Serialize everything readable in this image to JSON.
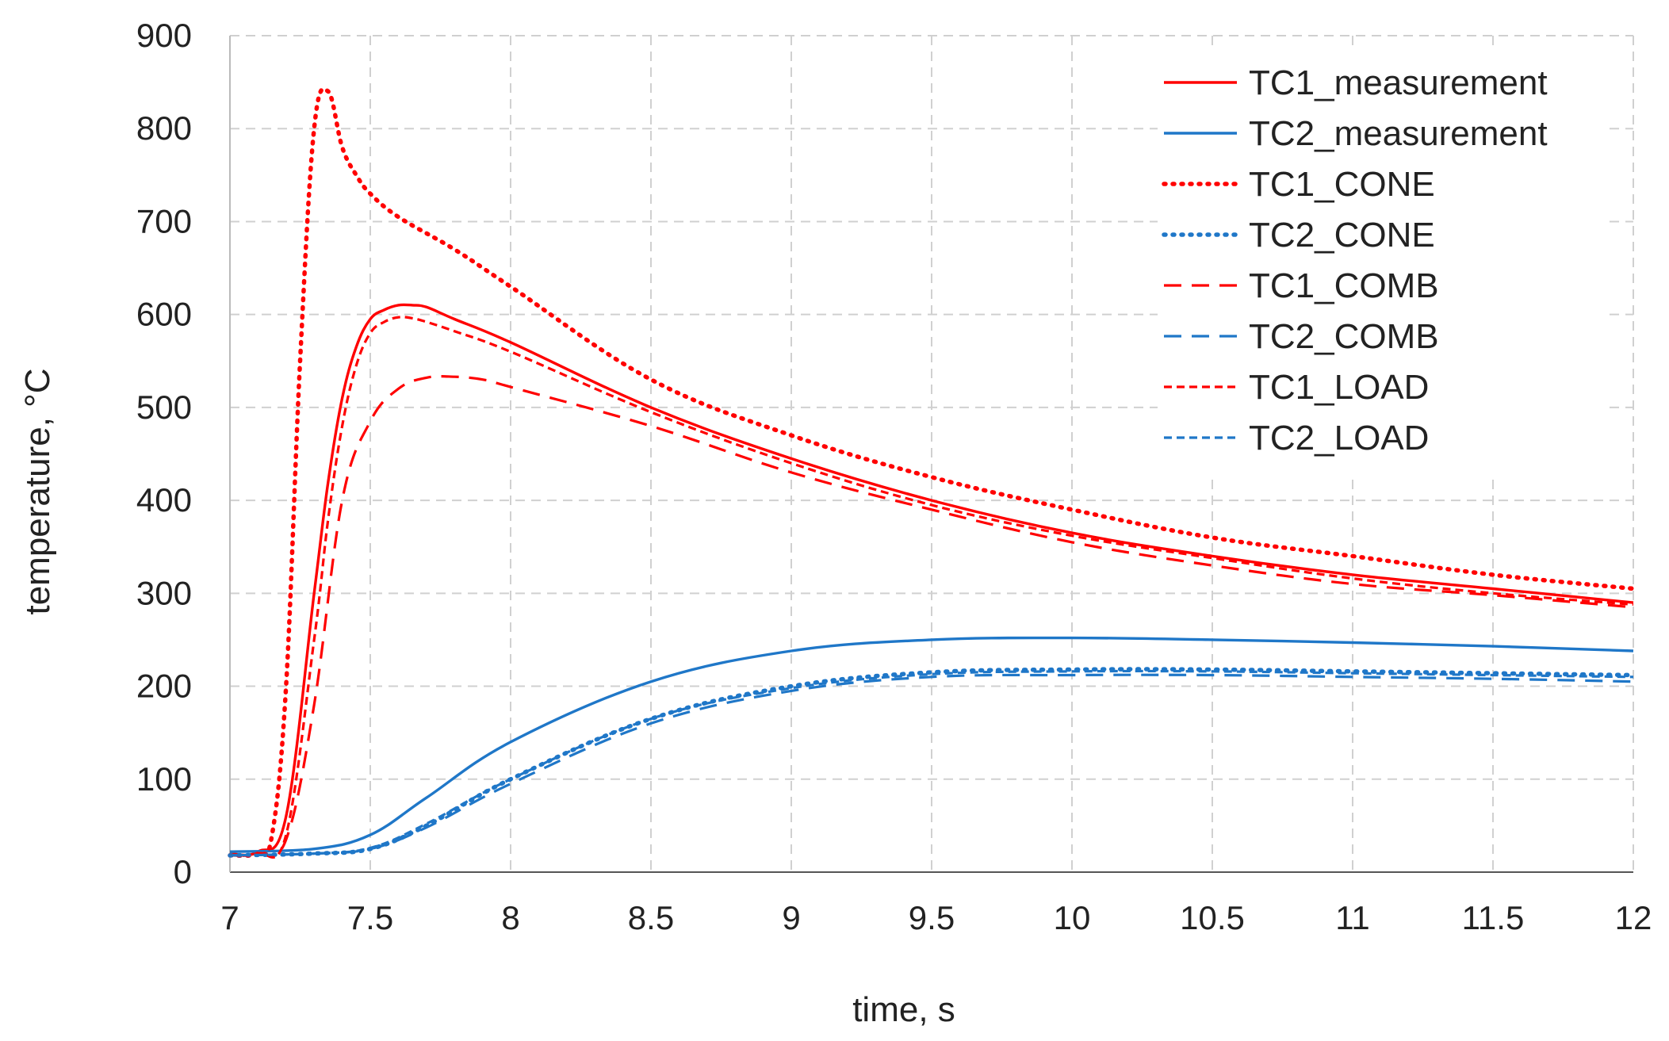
{
  "chart_data": {
    "type": "line",
    "title": "",
    "xlabel": "time, s",
    "ylabel": "temperature, °C",
    "xlim": [
      7,
      12
    ],
    "ylim": [
      0,
      900
    ],
    "xticks": [
      "7",
      "7.5",
      "8",
      "8.5",
      "9",
      "9.5",
      "10",
      "10.5",
      "11",
      "11.5",
      "12"
    ],
    "yticks": [
      "0",
      "100",
      "200",
      "300",
      "400",
      "500",
      "600",
      "700",
      "800",
      "900"
    ],
    "grid": true,
    "legend_position": "top-right",
    "series": [
      {
        "name": "TC1_measurement",
        "color": "#ff0000",
        "style": "solid",
        "x": [
          7,
          7.1,
          7.2,
          7.3,
          7.35,
          7.4,
          7.45,
          7.5,
          7.55,
          7.6,
          7.65,
          7.7,
          7.8,
          8,
          8.5,
          9,
          9.5,
          10,
          10.5,
          11,
          11.5,
          12
        ],
        "y": [
          20,
          22,
          60,
          300,
          420,
          510,
          565,
          595,
          605,
          610,
          610,
          608,
          595,
          570,
          500,
          445,
          400,
          365,
          340,
          320,
          305,
          290
        ]
      },
      {
        "name": "TC2_measurement",
        "color": "#1f77c8",
        "style": "solid",
        "x": [
          7,
          7.3,
          7.5,
          7.7,
          8,
          8.5,
          9,
          9.5,
          10,
          10.5,
          11,
          11.5,
          12
        ],
        "y": [
          22,
          25,
          40,
          80,
          140,
          205,
          238,
          250,
          252,
          250,
          247,
          243,
          238
        ]
      },
      {
        "name": "TC1_CONE",
        "color": "#ff0000",
        "style": "dotted",
        "x": [
          7,
          7.1,
          7.15,
          7.2,
          7.25,
          7.3,
          7.35,
          7.4,
          7.45,
          7.5,
          7.6,
          7.8,
          8,
          8.5,
          9,
          9.5,
          10,
          10.5,
          11,
          11.5,
          12
        ],
        "y": [
          18,
          20,
          40,
          200,
          550,
          800,
          840,
          780,
          750,
          730,
          705,
          670,
          630,
          530,
          470,
          425,
          390,
          360,
          340,
          320,
          305
        ]
      },
      {
        "name": "TC2_CONE",
        "color": "#1f77c8",
        "style": "dotted",
        "x": [
          7,
          7.3,
          7.5,
          7.7,
          8,
          8.5,
          9,
          9.5,
          10,
          10.5,
          11,
          11.5,
          12
        ],
        "y": [
          18,
          20,
          25,
          50,
          100,
          165,
          200,
          215,
          218,
          218,
          216,
          214,
          212
        ]
      },
      {
        "name": "TC1_COMB",
        "color": "#ff0000",
        "style": "dashed",
        "x": [
          7,
          7.1,
          7.2,
          7.3,
          7.4,
          7.5,
          7.6,
          7.7,
          7.8,
          7.9,
          8,
          8.5,
          9,
          9.5,
          10,
          10.5,
          11,
          11.5,
          12
        ],
        "y": [
          18,
          20,
          35,
          180,
          400,
          485,
          520,
          532,
          533,
          530,
          522,
          480,
          430,
          390,
          355,
          330,
          310,
          298,
          285
        ]
      },
      {
        "name": "TC2_COMB",
        "color": "#1f77c8",
        "style": "dashed",
        "x": [
          7,
          7.3,
          7.5,
          7.7,
          8,
          8.5,
          9,
          9.5,
          10,
          10.5,
          11,
          11.5,
          12
        ],
        "y": [
          18,
          20,
          25,
          48,
          95,
          160,
          195,
          210,
          212,
          212,
          210,
          208,
          205
        ]
      },
      {
        "name": "TC1_LOAD",
        "color": "#ff0000",
        "style": "short-dashed",
        "x": [
          7,
          7.1,
          7.2,
          7.3,
          7.35,
          7.4,
          7.45,
          7.5,
          7.55,
          7.6,
          7.65,
          7.7,
          7.8,
          8,
          8.5,
          9,
          9.5,
          10,
          10.5,
          11,
          11.5,
          12
        ],
        "y": [
          18,
          20,
          40,
          250,
          380,
          480,
          545,
          580,
          592,
          597,
          596,
          592,
          582,
          560,
          495,
          440,
          395,
          362,
          338,
          316,
          300,
          288
        ]
      },
      {
        "name": "TC2_LOAD",
        "color": "#1f77c8",
        "style": "short-dashed",
        "x": [
          7,
          7.3,
          7.5,
          7.7,
          8,
          8.5,
          9,
          9.5,
          10,
          10.5,
          11,
          11.5,
          12
        ],
        "y": [
          18,
          20,
          26,
          52,
          100,
          165,
          198,
          213,
          216,
          216,
          214,
          212,
          210
        ]
      }
    ]
  }
}
